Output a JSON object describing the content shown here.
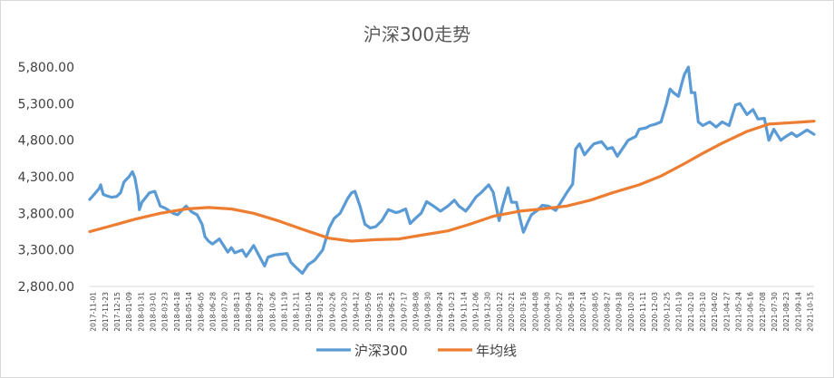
{
  "chart_data": {
    "type": "line",
    "title": "沪深300走势",
    "xlabel": "",
    "ylabel": "",
    "ylim": [
      2800,
      5800
    ],
    "yticks": [
      "2,800.00",
      "3,300.00",
      "3,800.00",
      "4,300.00",
      "4,800.00",
      "5,300.00",
      "5,800.00"
    ],
    "ytick_values": [
      2800,
      3300,
      3800,
      4300,
      4800,
      5300,
      5800
    ],
    "grid": false,
    "legend_position": "bottom",
    "x_start": "2017-11-01",
    "x_end": "2021-10-29",
    "x_tick_labels": [
      "2017-11-01",
      "2017-11-23",
      "2017-12-15",
      "2018-01-09",
      "2018-01-31",
      "2018-03-01",
      "2018-03-23",
      "2018-04-18",
      "2018-05-14",
      "2018-06-05",
      "2018-06-28",
      "2018-07-20",
      "2018-08-13",
      "2018-09-04",
      "2018-09-27",
      "2018-10-26",
      "2018-11-19",
      "2018-12-11",
      "2019-01-04",
      "2019-01-28",
      "2019-02-26",
      "2019-03-20",
      "2019-04-12",
      "2019-05-09",
      "2019-05-31",
      "2019-06-25",
      "2019-07-17",
      "2019-08-08",
      "2019-08-30",
      "2019-09-24",
      "2019-10-23",
      "2019-11-14",
      "2019-12-06",
      "2019-12-30",
      "2020-01-22",
      "2020-02-21",
      "2020-03-16",
      "2020-04-08",
      "2020-04-30",
      "2020-05-27",
      "2020-06-18",
      "2020-07-14",
      "2020-08-05",
      "2020-08-27",
      "2020-09-18",
      "2020-10-20",
      "2020-11-11",
      "2020-12-03",
      "2020-12-25",
      "2021-01-19",
      "2021-02-10",
      "2021-03-10",
      "2021-04-02",
      "2021-04-27",
      "2021-05-24",
      "2021-06-16",
      "2021-07-08",
      "2021-07-30",
      "2021-08-23",
      "2021-09-14",
      "2021-10-15"
    ],
    "series": [
      {
        "name": "沪深300",
        "color": "#5b9bd5",
        "points": [
          [
            "2017-11-01",
            3990
          ],
          [
            "2017-11-10",
            4060
          ],
          [
            "2017-11-20",
            4140
          ],
          [
            "2017-11-23",
            4190
          ],
          [
            "2017-11-28",
            4060
          ],
          [
            "2017-12-05",
            4040
          ],
          [
            "2017-12-15",
            4020
          ],
          [
            "2017-12-25",
            4030
          ],
          [
            "2018-01-02",
            4080
          ],
          [
            "2018-01-09",
            4230
          ],
          [
            "2018-01-19",
            4300
          ],
          [
            "2018-01-26",
            4370
          ],
          [
            "2018-01-31",
            4280
          ],
          [
            "2018-02-06",
            4050
          ],
          [
            "2018-02-09",
            3850
          ],
          [
            "2018-02-14",
            3950
          ],
          [
            "2018-03-01",
            4080
          ],
          [
            "2018-03-12",
            4100
          ],
          [
            "2018-03-23",
            3900
          ],
          [
            "2018-04-02",
            3870
          ],
          [
            "2018-04-18",
            3800
          ],
          [
            "2018-04-27",
            3780
          ],
          [
            "2018-05-14",
            3900
          ],
          [
            "2018-05-25",
            3820
          ],
          [
            "2018-06-05",
            3780
          ],
          [
            "2018-06-15",
            3650
          ],
          [
            "2018-06-21",
            3480
          ],
          [
            "2018-06-28",
            3420
          ],
          [
            "2018-07-06",
            3380
          ],
          [
            "2018-07-20",
            3450
          ],
          [
            "2018-08-06",
            3270
          ],
          [
            "2018-08-13",
            3330
          ],
          [
            "2018-08-20",
            3260
          ],
          [
            "2018-09-04",
            3300
          ],
          [
            "2018-09-12",
            3210
          ],
          [
            "2018-09-27",
            3360
          ],
          [
            "2018-10-11",
            3180
          ],
          [
            "2018-10-19",
            3080
          ],
          [
            "2018-10-26",
            3200
          ],
          [
            "2018-11-08",
            3230
          ],
          [
            "2018-11-19",
            3240
          ],
          [
            "2018-12-03",
            3250
          ],
          [
            "2018-12-11",
            3130
          ],
          [
            "2018-12-24",
            3040
          ],
          [
            "2019-01-03",
            2980
          ],
          [
            "2019-01-15",
            3100
          ],
          [
            "2019-01-28",
            3160
          ],
          [
            "2019-02-13",
            3300
          ],
          [
            "2019-02-26",
            3600
          ],
          [
            "2019-03-08",
            3730
          ],
          [
            "2019-03-20",
            3800
          ],
          [
            "2019-04-04",
            4000
          ],
          [
            "2019-04-12",
            4080
          ],
          [
            "2019-04-19",
            4100
          ],
          [
            "2019-04-29",
            3900
          ],
          [
            "2019-05-09",
            3650
          ],
          [
            "2019-05-20",
            3600
          ],
          [
            "2019-05-31",
            3620
          ],
          [
            "2019-06-12",
            3700
          ],
          [
            "2019-06-25",
            3850
          ],
          [
            "2019-07-10",
            3810
          ],
          [
            "2019-07-17",
            3820
          ],
          [
            "2019-07-30",
            3860
          ],
          [
            "2019-08-08",
            3660
          ],
          [
            "2019-08-20",
            3740
          ],
          [
            "2019-08-30",
            3800
          ],
          [
            "2019-09-10",
            3960
          ],
          [
            "2019-09-24",
            3900
          ],
          [
            "2019-10-08",
            3830
          ],
          [
            "2019-10-23",
            3900
          ],
          [
            "2019-11-05",
            3980
          ],
          [
            "2019-11-14",
            3900
          ],
          [
            "2019-11-28",
            3830
          ],
          [
            "2019-12-06",
            3900
          ],
          [
            "2019-12-18",
            4020
          ],
          [
            "2019-12-30",
            4090
          ],
          [
            "2020-01-13",
            4190
          ],
          [
            "2020-01-22",
            4090
          ],
          [
            "2020-02-03",
            3700
          ],
          [
            "2020-02-10",
            3900
          ],
          [
            "2020-02-21",
            4150
          ],
          [
            "2020-02-28",
            3950
          ],
          [
            "2020-03-09",
            3950
          ],
          [
            "2020-03-16",
            3730
          ],
          [
            "2020-03-23",
            3540
          ],
          [
            "2020-04-01",
            3680
          ],
          [
            "2020-04-08",
            3780
          ],
          [
            "2020-04-20",
            3840
          ],
          [
            "2020-04-30",
            3910
          ],
          [
            "2020-05-12",
            3900
          ],
          [
            "2020-05-27",
            3840
          ],
          [
            "2020-06-08",
            3970
          ],
          [
            "2020-06-18",
            4080
          ],
          [
            "2020-06-30",
            4200
          ],
          [
            "2020-07-06",
            4680
          ],
          [
            "2020-07-14",
            4750
          ],
          [
            "2020-07-24",
            4600
          ],
          [
            "2020-08-05",
            4700
          ],
          [
            "2020-08-12",
            4750
          ],
          [
            "2020-08-27",
            4780
          ],
          [
            "2020-09-08",
            4680
          ],
          [
            "2020-09-18",
            4700
          ],
          [
            "2020-09-28",
            4580
          ],
          [
            "2020-10-20",
            4800
          ],
          [
            "2020-11-04",
            4850
          ],
          [
            "2020-11-11",
            4950
          ],
          [
            "2020-11-25",
            4970
          ],
          [
            "2020-12-03",
            5000
          ],
          [
            "2020-12-14",
            5020
          ],
          [
            "2020-12-25",
            5050
          ],
          [
            "2021-01-05",
            5300
          ],
          [
            "2021-01-12",
            5500
          ],
          [
            "2021-01-19",
            5450
          ],
          [
            "2021-01-29",
            5400
          ],
          [
            "2021-02-05",
            5580
          ],
          [
            "2021-02-10",
            5700
          ],
          [
            "2021-02-18",
            5800
          ],
          [
            "2021-02-24",
            5450
          ],
          [
            "2021-03-03",
            5450
          ],
          [
            "2021-03-10",
            5050
          ],
          [
            "2021-03-19",
            5000
          ],
          [
            "2021-04-02",
            5050
          ],
          [
            "2021-04-15",
            4980
          ],
          [
            "2021-04-27",
            5050
          ],
          [
            "2021-05-11",
            5000
          ],
          [
            "2021-05-24",
            5280
          ],
          [
            "2021-06-02",
            5300
          ],
          [
            "2021-06-16",
            5150
          ],
          [
            "2021-06-28",
            5220
          ],
          [
            "2021-07-08",
            5090
          ],
          [
            "2021-07-21",
            5100
          ],
          [
            "2021-07-30",
            4800
          ],
          [
            "2021-08-09",
            4950
          ],
          [
            "2021-08-23",
            4800
          ],
          [
            "2021-09-02",
            4850
          ],
          [
            "2021-09-14",
            4900
          ],
          [
            "2021-09-24",
            4850
          ],
          [
            "2021-10-15",
            4940
          ],
          [
            "2021-10-29",
            4880
          ]
        ]
      },
      {
        "name": "年均线",
        "color": "#ed7d31",
        "points": [
          [
            "2017-11-01",
            3550
          ],
          [
            "2017-12-15",
            3630
          ],
          [
            "2018-01-31",
            3720
          ],
          [
            "2018-03-23",
            3800
          ],
          [
            "2018-05-14",
            3860
          ],
          [
            "2018-06-28",
            3880
          ],
          [
            "2018-08-13",
            3860
          ],
          [
            "2018-09-27",
            3800
          ],
          [
            "2018-11-19",
            3690
          ],
          [
            "2019-01-04",
            3580
          ],
          [
            "2019-02-26",
            3460
          ],
          [
            "2019-04-12",
            3420
          ],
          [
            "2019-05-31",
            3440
          ],
          [
            "2019-07-17",
            3450
          ],
          [
            "2019-08-30",
            3500
          ],
          [
            "2019-10-23",
            3560
          ],
          [
            "2019-12-06",
            3650
          ],
          [
            "2020-01-22",
            3760
          ],
          [
            "2020-03-16",
            3830
          ],
          [
            "2020-04-30",
            3860
          ],
          [
            "2020-06-18",
            3900
          ],
          [
            "2020-08-05",
            3980
          ],
          [
            "2020-09-18",
            4080
          ],
          [
            "2020-11-11",
            4190
          ],
          [
            "2020-12-25",
            4310
          ],
          [
            "2021-02-10",
            4480
          ],
          [
            "2021-03-19",
            4620
          ],
          [
            "2021-04-27",
            4760
          ],
          [
            "2021-06-16",
            4920
          ],
          [
            "2021-07-30",
            5020
          ],
          [
            "2021-09-14",
            5040
          ],
          [
            "2021-10-29",
            5060
          ]
        ]
      }
    ]
  }
}
